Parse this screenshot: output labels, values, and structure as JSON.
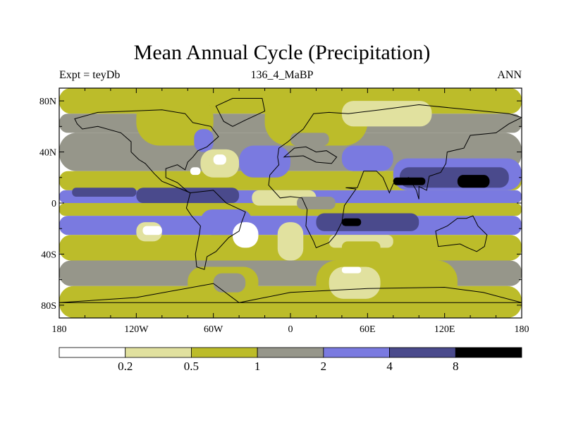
{
  "header": {
    "title": "Mean Annual Cycle (Precipitation)",
    "left_label": "Expt = teyDb",
    "center_label": "136_4_MaBP",
    "right_label": "ANN"
  },
  "chart_data": {
    "type": "heatmap",
    "title": "Mean Annual Cycle (Precipitation)",
    "subtitle_left": "Expt = teyDb",
    "subtitle_center": "136_4_MaBP",
    "subtitle_right": "ANN",
    "x_ticks": [
      "180",
      "120W",
      "60W",
      "0",
      "60E",
      "120E",
      "180"
    ],
    "x_tick_values": [
      -180,
      -120,
      -60,
      0,
      60,
      120,
      180
    ],
    "y_ticks": [
      "80N",
      "40N",
      "0",
      "40S",
      "80S"
    ],
    "y_tick_values": [
      80,
      40,
      0,
      -40,
      -80
    ],
    "xlim": [
      -180,
      180
    ],
    "ylim": [
      -90,
      90
    ],
    "colorbar": {
      "levels": [
        "0.2",
        "0.5",
        "1",
        "2",
        "4",
        "8"
      ],
      "level_values": [
        0.2,
        0.5,
        1,
        2,
        4,
        8
      ],
      "colors": [
        "#ffffff",
        "#e1e19f",
        "#bcbc2a",
        "#96968a",
        "#7a7ae0",
        "#4a4a8c",
        "#000000"
      ]
    },
    "regions": [
      {
        "lon": [
          -180,
          180
        ],
        "lat": [
          70,
          90
        ],
        "level": 2
      },
      {
        "lon": [
          -180,
          180
        ],
        "lat": [
          55,
          70
        ],
        "level": 3
      },
      {
        "lon": [
          -180,
          180
        ],
        "lat": [
          25,
          55
        ],
        "level": 3
      },
      {
        "lon": [
          -180,
          180
        ],
        "lat": [
          10,
          25
        ],
        "level": 2
      },
      {
        "lon": [
          -180,
          180
        ],
        "lat": [
          0,
          10
        ],
        "level": 4
      },
      {
        "lon": [
          -180,
          180
        ],
        "lat": [
          -10,
          0
        ],
        "level": 2
      },
      {
        "lon": [
          -180,
          180
        ],
        "lat": [
          -25,
          -10
        ],
        "level": 4
      },
      {
        "lon": [
          -180,
          180
        ],
        "lat": [
          -45,
          -25
        ],
        "level": 2
      },
      {
        "lon": [
          -180,
          180
        ],
        "lat": [
          -65,
          -45
        ],
        "level": 3
      },
      {
        "lon": [
          -180,
          180
        ],
        "lat": [
          -90,
          -65
        ],
        "level": 2
      },
      {
        "lon": [
          -120,
          -60
        ],
        "lat": [
          45,
          85
        ],
        "level": 2
      },
      {
        "lon": [
          -20,
          60
        ],
        "lat": [
          45,
          85
        ],
        "level": 2
      },
      {
        "lon": [
          40,
          110
        ],
        "lat": [
          60,
          80
        ],
        "level": 1
      },
      {
        "lon": [
          -75,
          -60
        ],
        "lat": [
          40,
          58
        ],
        "level": 4
      },
      {
        "lon": [
          -70,
          -40
        ],
        "lat": [
          20,
          42
        ],
        "level": 1
      },
      {
        "lon": [
          -78,
          -70
        ],
        "lat": [
          22,
          28
        ],
        "level": 0
      },
      {
        "lon": [
          -60,
          -50
        ],
        "lat": [
          30,
          38
        ],
        "level": 0
      },
      {
        "lon": [
          -170,
          -120
        ],
        "lat": [
          5,
          12
        ],
        "level": 5
      },
      {
        "lon": [
          -120,
          -40
        ],
        "lat": [
          0,
          12
        ],
        "level": 5
      },
      {
        "lon": [
          -40,
          0
        ],
        "lat": [
          20,
          45
        ],
        "level": 4
      },
      {
        "lon": [
          0,
          30
        ],
        "lat": [
          45,
          55
        ],
        "level": 3
      },
      {
        "lon": [
          40,
          80
        ],
        "lat": [
          25,
          45
        ],
        "level": 4
      },
      {
        "lon": [
          80,
          180
        ],
        "lat": [
          10,
          35
        ],
        "level": 4
      },
      {
        "lon": [
          85,
          170
        ],
        "lat": [
          12,
          28
        ],
        "level": 5
      },
      {
        "lon": [
          130,
          155
        ],
        "lat": [
          12,
          22
        ],
        "level": 6
      },
      {
        "lon": [
          80,
          105
        ],
        "lat": [
          14,
          20
        ],
        "level": 6
      },
      {
        "lon": [
          -30,
          20
        ],
        "lat": [
          -2,
          10
        ],
        "level": 1
      },
      {
        "lon": [
          5,
          35
        ],
        "lat": [
          -5,
          5
        ],
        "level": 3
      },
      {
        "lon": [
          20,
          100
        ],
        "lat": [
          -22,
          -8
        ],
        "level": 5
      },
      {
        "lon": [
          40,
          55
        ],
        "lat": [
          -18,
          -12
        ],
        "level": 6
      },
      {
        "lon": [
          -70,
          -30
        ],
        "lat": [
          -25,
          -5
        ],
        "level": 4
      },
      {
        "lon": [
          -10,
          10
        ],
        "lat": [
          -45,
          -15
        ],
        "level": 1
      },
      {
        "lon": [
          -120,
          -100
        ],
        "lat": [
          -30,
          -15
        ],
        "level": 1
      },
      {
        "lon": [
          -115,
          -100
        ],
        "lat": [
          -25,
          -18
        ],
        "level": 0
      },
      {
        "lon": [
          -45,
          -25
        ],
        "lat": [
          -35,
          -15
        ],
        "level": 0
      },
      {
        "lon": [
          30,
          80
        ],
        "lat": [
          -35,
          -25
        ],
        "level": 1
      },
      {
        "lon": [
          40,
          70
        ],
        "lat": [
          -40,
          -30
        ],
        "level": 2
      },
      {
        "lon": [
          20,
          130
        ],
        "lat": [
          -80,
          -45
        ],
        "level": 2
      },
      {
        "lon": [
          30,
          70
        ],
        "lat": [
          -75,
          -50
        ],
        "level": 1
      },
      {
        "lon": [
          40,
          55
        ],
        "lat": [
          -55,
          -50
        ],
        "level": 0
      },
      {
        "lon": [
          -80,
          -25
        ],
        "lat": [
          -75,
          -50
        ],
        "level": 2
      },
      {
        "lon": [
          -60,
          -35
        ],
        "lat": [
          -70,
          -55
        ],
        "level": 3
      }
    ],
    "coastlines": [
      {
        "name": "north-america",
        "points": [
          [
            -168,
            66
          ],
          [
            -150,
            71
          ],
          [
            -125,
            72
          ],
          [
            -100,
            73
          ],
          [
            -82,
            70
          ],
          [
            -76,
            63
          ],
          [
            -62,
            60
          ],
          [
            -56,
            52
          ],
          [
            -65,
            44
          ],
          [
            -72,
            41
          ],
          [
            -76,
            36
          ],
          [
            -80,
            32
          ],
          [
            -82,
            26
          ],
          [
            -88,
            30
          ],
          [
            -97,
            27
          ],
          [
            -97,
            20
          ],
          [
            -88,
            16
          ],
          [
            -80,
            9
          ],
          [
            -78,
            8
          ],
          [
            -90,
            13
          ],
          [
            -100,
            17
          ],
          [
            -106,
            23
          ],
          [
            -113,
            31
          ],
          [
            -118,
            34
          ],
          [
            -124,
            40
          ],
          [
            -124,
            48
          ],
          [
            -132,
            55
          ],
          [
            -150,
            60
          ],
          [
            -162,
            58
          ],
          [
            -166,
            62
          ]
        ]
      },
      {
        "name": "greenland",
        "points": [
          [
            -58,
            76
          ],
          [
            -45,
            82
          ],
          [
            -22,
            82
          ],
          [
            -20,
            72
          ],
          [
            -35,
            65
          ],
          [
            -45,
            60
          ],
          [
            -52,
            64
          ]
        ]
      },
      {
        "name": "south-america",
        "points": [
          [
            -78,
            8
          ],
          [
            -60,
            10
          ],
          [
            -50,
            0
          ],
          [
            -35,
            -7
          ],
          [
            -38,
            -15
          ],
          [
            -40,
            -22
          ],
          [
            -48,
            -27
          ],
          [
            -58,
            -38
          ],
          [
            -65,
            -42
          ],
          [
            -67,
            -52
          ],
          [
            -73,
            -50
          ],
          [
            -74,
            -40
          ],
          [
            -71,
            -25
          ],
          [
            -70,
            -18
          ],
          [
            -77,
            -10
          ],
          [
            -81,
            -4
          ],
          [
            -80,
            0
          ]
        ]
      },
      {
        "name": "eurasia-africa",
        "points": [
          [
            -10,
            36
          ],
          [
            -9,
            43
          ],
          [
            -2,
            48
          ],
          [
            5,
            54
          ],
          [
            10,
            58
          ],
          [
            18,
            70
          ],
          [
            30,
            71
          ],
          [
            45,
            70
          ],
          [
            70,
            73
          ],
          [
            100,
            77
          ],
          [
            140,
            73
          ],
          [
            170,
            70
          ],
          [
            180,
            67
          ],
          [
            170,
            62
          ],
          [
            160,
            55
          ],
          [
            140,
            53
          ],
          [
            135,
            43
          ],
          [
            122,
            40
          ],
          [
            121,
            31
          ],
          [
            117,
            24
          ],
          [
            108,
            21
          ],
          [
            106,
            10
          ],
          [
            100,
            13
          ],
          [
            100,
            3
          ],
          [
            98,
            10
          ],
          [
            92,
            20
          ],
          [
            80,
            15
          ],
          [
            77,
            8
          ],
          [
            72,
            20
          ],
          [
            67,
            25
          ],
          [
            57,
            25
          ],
          [
            52,
            12
          ],
          [
            43,
            12
          ],
          [
            51,
            11
          ],
          [
            42,
            -2
          ],
          [
            40,
            -15
          ],
          [
            35,
            -25
          ],
          [
            30,
            -31
          ],
          [
            20,
            -35
          ],
          [
            18,
            -30
          ],
          [
            12,
            -18
          ],
          [
            13,
            -5
          ],
          [
            9,
            4
          ],
          [
            0,
            5
          ],
          [
            -8,
            4
          ],
          [
            -17,
            14
          ],
          [
            -16,
            22
          ],
          [
            -9,
            30
          ]
        ]
      },
      {
        "name": "mediterranean",
        "points": [
          [
            -5,
            36
          ],
          [
            10,
            37
          ],
          [
            20,
            32
          ],
          [
            32,
            31
          ],
          [
            36,
            36
          ],
          [
            28,
            41
          ],
          [
            20,
            40
          ],
          [
            12,
            44
          ],
          [
            3,
            43
          ],
          [
            -5,
            36
          ]
        ]
      },
      {
        "name": "australia",
        "points": [
          [
            113,
            -22
          ],
          [
            122,
            -18
          ],
          [
            130,
            -12
          ],
          [
            137,
            -12
          ],
          [
            142,
            -10
          ],
          [
            146,
            -18
          ],
          [
            153,
            -25
          ],
          [
            151,
            -34
          ],
          [
            145,
            -38
          ],
          [
            138,
            -35
          ],
          [
            132,
            -32
          ],
          [
            124,
            -33
          ],
          [
            115,
            -34
          ]
        ]
      },
      {
        "name": "antarctica",
        "points": [
          [
            -180,
            -78
          ],
          [
            -120,
            -74
          ],
          [
            -60,
            -63
          ],
          [
            -40,
            -78
          ],
          [
            0,
            -70
          ],
          [
            60,
            -67
          ],
          [
            120,
            -66
          ],
          [
            150,
            -70
          ],
          [
            180,
            -78
          ]
        ]
      }
    ]
  }
}
